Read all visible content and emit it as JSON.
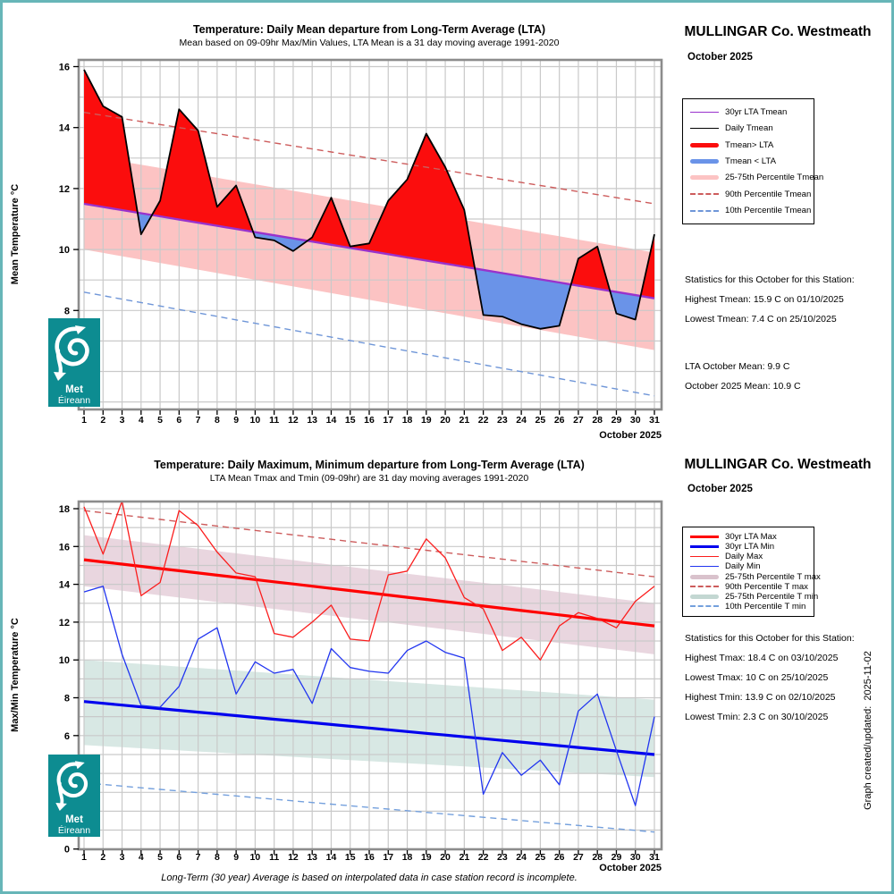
{
  "page": {
    "border_color": "#67b6b8"
  },
  "station_header": {
    "title": "MULLINGAR Co. Westmeath",
    "subtitle": "October 2025"
  },
  "logo": {
    "line1": "Met",
    "line2": "Éireann",
    "bg": "#0d8c91"
  },
  "footer_note": "Long-Term (30 year) Average is based on interpolated data in case station record is incomplete.",
  "created_note": "Graph created/updated:  2025-11-02",
  "chart_data": [
    {
      "type": "line",
      "title": "Temperature: Daily Mean departure from Long-Term Average (LTA)",
      "subtitle": "Mean based on 09-09hr Max/Min Values, LTA Mean is a 31 day moving average 1991-2020",
      "ylabel": "Mean Temperature °C",
      "xlabel": "October 2025",
      "x": [
        1,
        2,
        3,
        4,
        5,
        6,
        7,
        8,
        9,
        10,
        11,
        12,
        13,
        14,
        15,
        16,
        17,
        18,
        19,
        20,
        21,
        22,
        23,
        24,
        25,
        26,
        27,
        28,
        29,
        30,
        31
      ],
      "yticks": [
        6,
        8,
        10,
        12,
        14,
        16
      ],
      "ylim": [
        4.7,
        16.2
      ],
      "grid": true,
      "legend_position": "right",
      "series": [
        {
          "name": "25-75th Percentile Tmean",
          "kind": "band",
          "upper": [
            13.1,
            9.9
          ],
          "lower": [
            10.0,
            6.7
          ],
          "color": "#fcc3c3"
        },
        {
          "name": "Tmean departure fill",
          "kind": "fill_between",
          "a": "Daily Tmean",
          "b": "30yr LTA Tmean",
          "above_color": "#fb0d0d",
          "below_color": "#6a93e8"
        },
        {
          "name": "90th Percentile Tmean",
          "kind": "line",
          "style": "dashed",
          "color": "#cd5c5c",
          "width": 1.4,
          "values": [
            14.5,
            11.5
          ]
        },
        {
          "name": "10th Percentile Tmean",
          "kind": "line",
          "style": "dashed",
          "color": "#6f96d8",
          "width": 1.4,
          "values": [
            8.6,
            5.2
          ]
        },
        {
          "name": "30yr LTA Tmean",
          "kind": "line",
          "style": "solid",
          "color": "#9932cc",
          "width": 2.4,
          "values": [
            11.5,
            8.4
          ]
        },
        {
          "name": "Daily Tmean",
          "kind": "line",
          "style": "solid",
          "color": "#000000",
          "width": 1.8,
          "values": [
            15.9,
            14.7,
            14.35,
            10.5,
            11.6,
            14.6,
            13.9,
            11.4,
            12.1,
            10.4,
            10.3,
            9.95,
            10.4,
            11.7,
            10.1,
            10.2,
            11.6,
            12.3,
            13.8,
            12.7,
            11.3,
            7.85,
            7.8,
            7.55,
            7.4,
            7.5,
            9.7,
            10.1,
            7.9,
            7.7,
            10.5
          ]
        }
      ],
      "legend": [
        {
          "label": "30yr LTA Tmean",
          "style": "line",
          "color": "#9932cc"
        },
        {
          "label": "Daily Tmean",
          "style": "line",
          "color": "#000000"
        },
        {
          "label": "Tmean> LTA",
          "style": "thick",
          "color": "#fb0d0d"
        },
        {
          "label": "Tmean < LTA",
          "style": "thick",
          "color": "#6a93e8"
        },
        {
          "label": "25-75th Percentile Tmean",
          "style": "thick",
          "color": "#fcc3c3"
        },
        {
          "label": "90th Percentile Tmean",
          "style": "dashed",
          "color": "#cd5c5c"
        },
        {
          "label": "10th Percentile Tmean",
          "style": "dashed",
          "color": "#6f96d8"
        }
      ],
      "stats_lines": [
        "Statistics for this October for this Station:",
        "Highest Tmean: 15.9 C on 01/10/2025",
        "Lowest Tmean: 7.4 C on 25/10/2025"
      ],
      "extra_stats": [
        "LTA October Mean: 9.9 C",
        "October 2025 Mean: 10.9 C"
      ]
    },
    {
      "type": "line",
      "title": "Temperature: Daily Maximum, Minimum departure from Long-Term Average (LTA)",
      "subtitle": "LTA Mean Tmax and Tmin (09-09hr) are 31 day moving averages 1991-2020",
      "ylabel": "Max/Min Temperature °C",
      "xlabel": "October 2025",
      "x": [
        1,
        2,
        3,
        4,
        5,
        6,
        7,
        8,
        9,
        10,
        11,
        12,
        13,
        14,
        15,
        16,
        17,
        18,
        19,
        20,
        21,
        22,
        23,
        24,
        25,
        26,
        27,
        28,
        29,
        30,
        31
      ],
      "yticks": [
        0,
        2,
        4,
        6,
        8,
        10,
        12,
        14,
        16,
        18
      ],
      "ylim": [
        0,
        18.4
      ],
      "grid": true,
      "legend_position": "right",
      "series": [
        {
          "name": "25-75th Percentile T max",
          "kind": "band",
          "upper": [
            16.6,
            13.0
          ],
          "lower": [
            13.9,
            10.3
          ],
          "color": "#e9d6df"
        },
        {
          "name": "25-75th Percentile T min",
          "kind": "band",
          "upper": [
            10.0,
            7.9
          ],
          "lower": [
            5.5,
            3.8
          ],
          "color": "#d8e8e4"
        },
        {
          "name": "90th Percentile T max",
          "kind": "line",
          "style": "dashed",
          "color": "#cd5c5c",
          "width": 1.4,
          "values": [
            17.9,
            14.4
          ]
        },
        {
          "name": "10th Percentile T min",
          "kind": "line",
          "style": "dashed",
          "color": "#74a0dd",
          "width": 1.4,
          "values": [
            3.5,
            0.9
          ]
        },
        {
          "name": "30yr LTA Max",
          "kind": "line",
          "style": "solid",
          "color": "#ff0000",
          "width": 3.2,
          "values": [
            15.3,
            11.8
          ]
        },
        {
          "name": "30yr LTA Min",
          "kind": "line",
          "style": "solid",
          "color": "#0000ee",
          "width": 3.2,
          "values": [
            7.8,
            5.0
          ]
        },
        {
          "name": "Daily Max",
          "kind": "line",
          "style": "solid",
          "color": "#fb1d1d",
          "width": 1.3,
          "values": [
            18.1,
            15.6,
            18.4,
            13.4,
            14.1,
            17.9,
            17.1,
            15.7,
            14.6,
            14.4,
            11.4,
            11.2,
            12.0,
            12.9,
            11.1,
            11.0,
            14.5,
            14.7,
            16.4,
            15.4,
            13.3,
            12.7,
            10.5,
            11.2,
            10.0,
            11.8,
            12.5,
            12.2,
            11.7,
            13.1,
            13.9
          ]
        },
        {
          "name": "Daily Min",
          "kind": "line",
          "style": "solid",
          "color": "#2135f0",
          "width": 1.3,
          "values": [
            13.6,
            13.9,
            10.3,
            7.6,
            7.5,
            8.6,
            11.1,
            11.7,
            8.2,
            9.9,
            9.3,
            9.5,
            7.7,
            10.6,
            9.6,
            9.4,
            9.3,
            10.5,
            11.0,
            10.4,
            10.1,
            2.9,
            5.1,
            3.9,
            4.7,
            3.4,
            7.3,
            8.2,
            5.2,
            2.3,
            7.0
          ]
        }
      ],
      "legend": [
        {
          "label": "30yr LTA Max",
          "style": "thickline",
          "color": "#ff0000"
        },
        {
          "label": "30yr LTA Min",
          "style": "thickline",
          "color": "#0000ee"
        },
        {
          "label": "Daily Max",
          "style": "line",
          "color": "#fb1d1d"
        },
        {
          "label": "Daily Min",
          "style": "line",
          "color": "#2135f0"
        },
        {
          "label": "25-75th Percentile T max",
          "style": "thick",
          "color": "#d9c2cc"
        },
        {
          "label": "90th Percentile T max",
          "style": "dashed",
          "color": "#cd5c5c"
        },
        {
          "label": "25-75th Percentile T min",
          "style": "thick",
          "color": "#c3d7d2"
        },
        {
          "label": "10th Percentile T min",
          "style": "dashed",
          "color": "#74a0dd"
        }
      ],
      "stats_lines": [
        "Statistics for this October for this Station:",
        "Highest Tmax: 18.4 C on 03/10/2025",
        "Lowest Tmax: 10 C on 25/10/2025",
        "Highest Tmin: 13.9 C on 02/10/2025",
        "Lowest Tmin: 2.3 C on 30/10/2025"
      ],
      "extra_stats": []
    }
  ]
}
